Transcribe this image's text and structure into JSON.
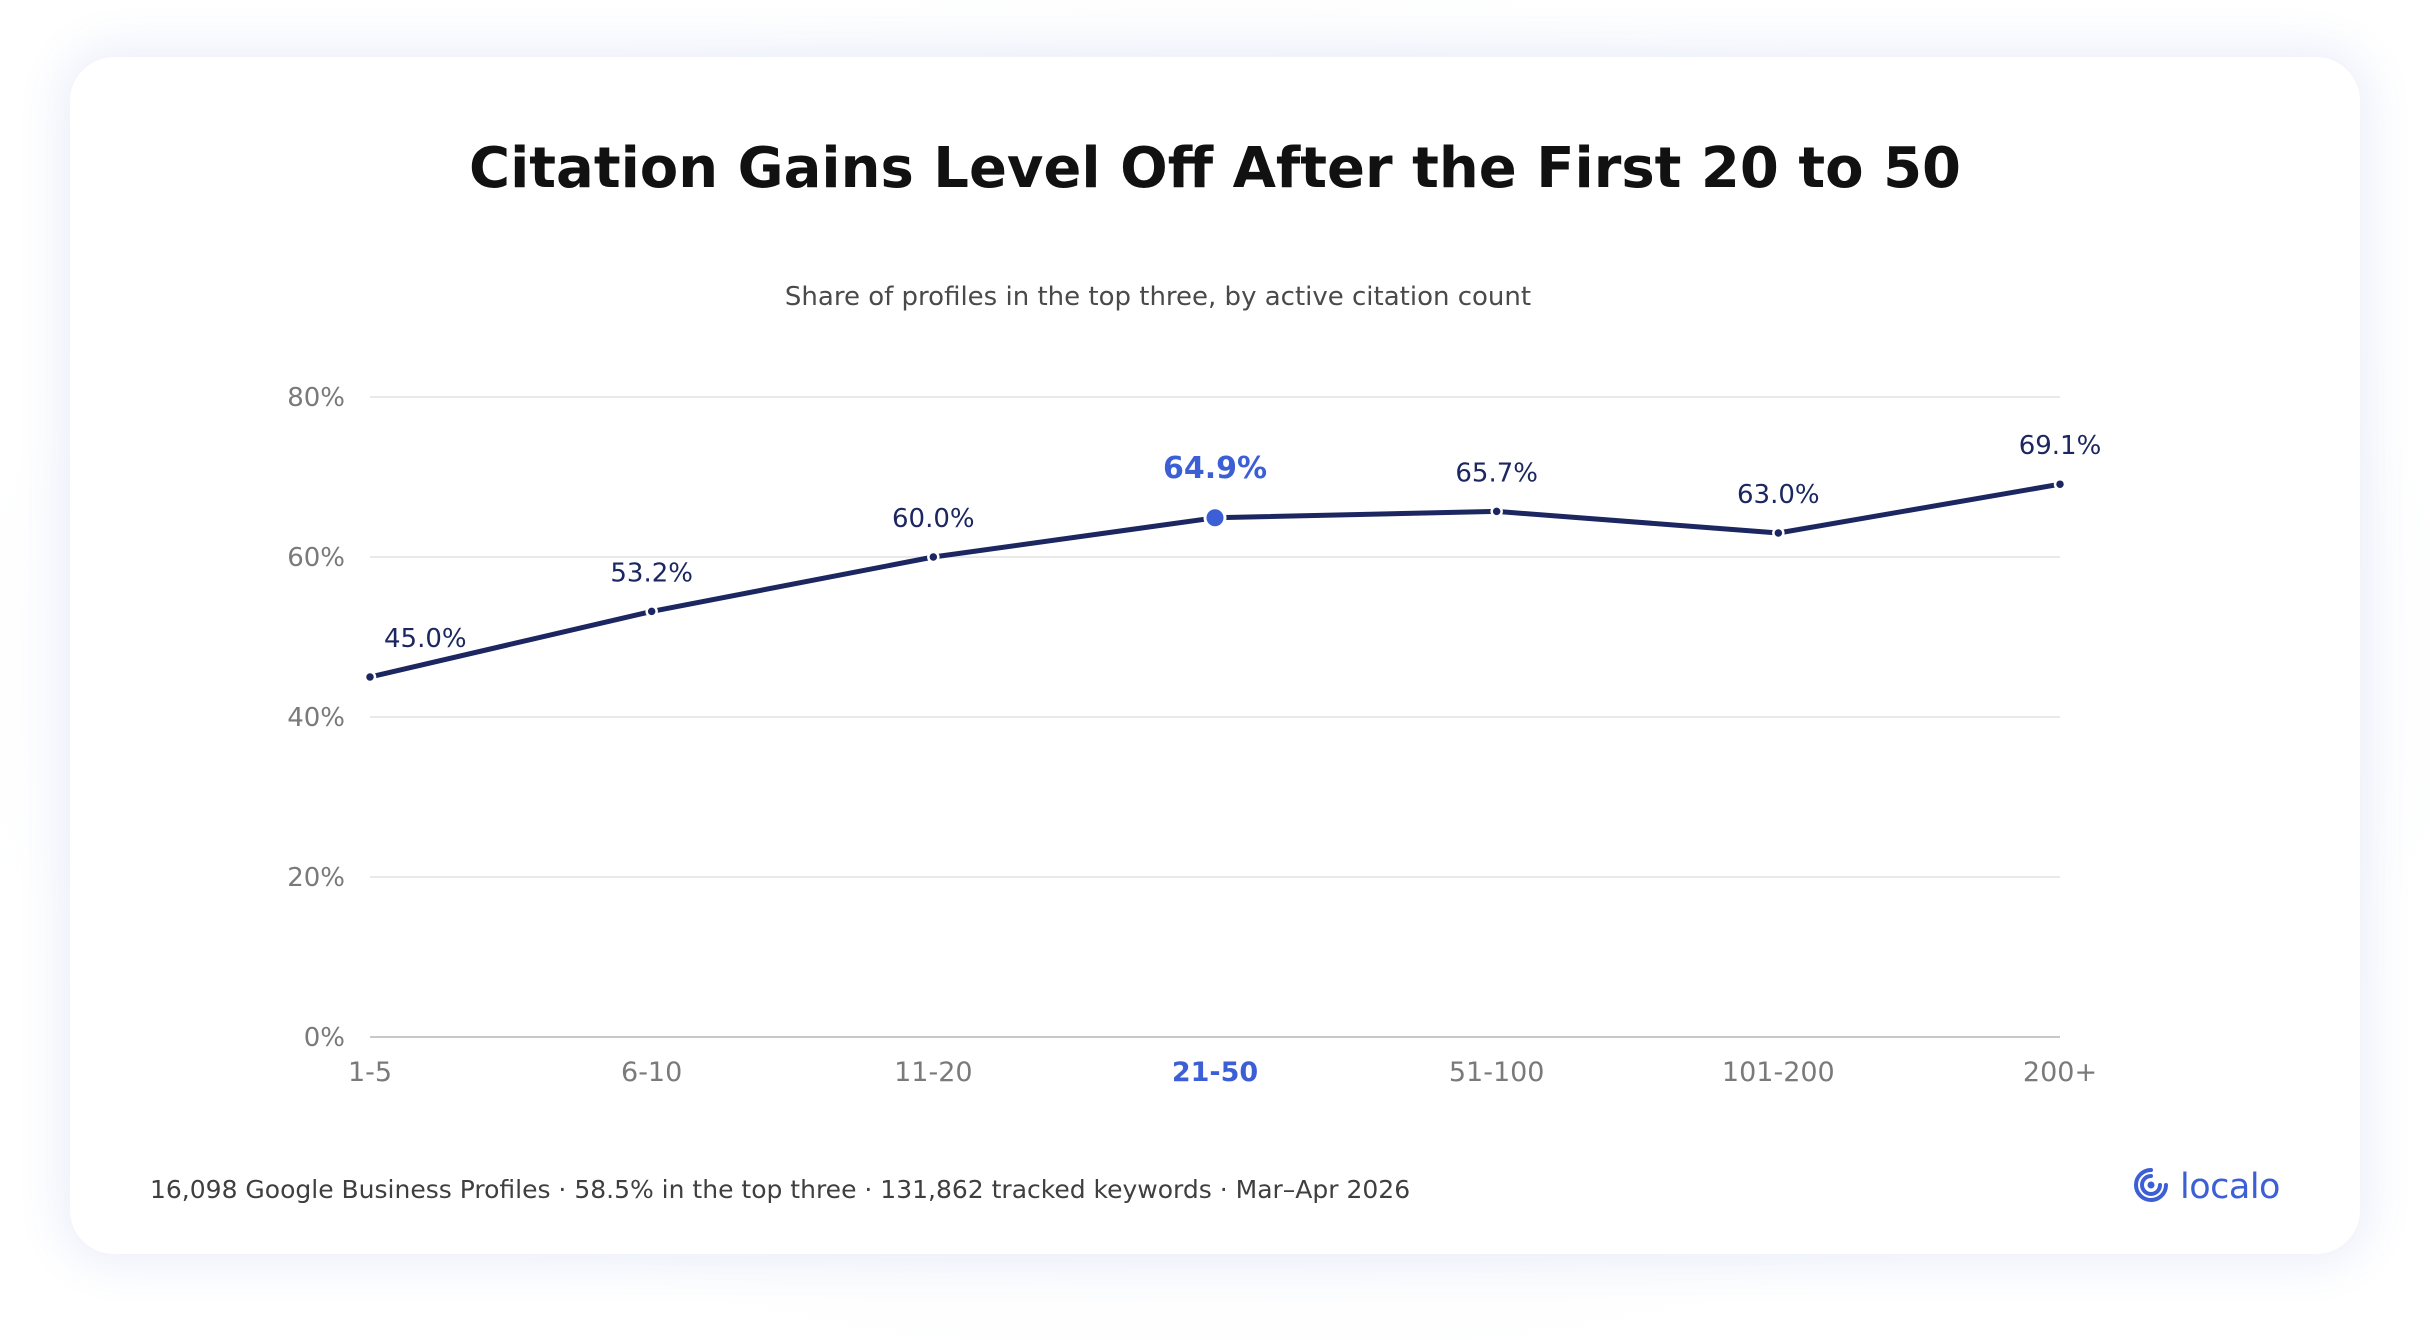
{
  "chart_data": {
    "type": "line",
    "title": "Citation Gains Level Off After the First 20 to 50",
    "subtitle": "Share of profiles in the top three, by active citation count",
    "xlabel": "",
    "ylabel": "",
    "categories": [
      "1-5",
      "6-10",
      "11-20",
      "21-50",
      "51-100",
      "101-200",
      "200+"
    ],
    "series": [
      {
        "values": [
          45.0,
          53.2,
          60.0,
          64.9,
          65.7,
          63.0,
          69.1
        ]
      }
    ],
    "data_labels": [
      "45.0%",
      "53.2%",
      "60.0%",
      "64.9%",
      "65.7%",
      "63.0%",
      "69.1%"
    ],
    "highlight_category": "21-50",
    "ylim": [
      0,
      80
    ],
    "yticks": [
      0,
      20,
      40,
      60,
      80
    ],
    "ytick_labels": [
      "0%",
      "20%",
      "40%",
      "60%",
      "80%"
    ],
    "grid": true,
    "legend": "none"
  },
  "footer": {
    "note": "16,098 Google Business Profiles · 58.5% in the top three · 131,862 tracked keywords · Mar–Apr 2026"
  },
  "logo": {
    "wordmark": "localo",
    "icon": "location-pin-icon"
  },
  "colors": {
    "line": "#1c2660",
    "highlight": "#3d5fd6",
    "grid": "#e2e2e2",
    "axis": "#c8c8c8",
    "tick_text": "#7a7a7a",
    "label_text": "#1c2660"
  }
}
